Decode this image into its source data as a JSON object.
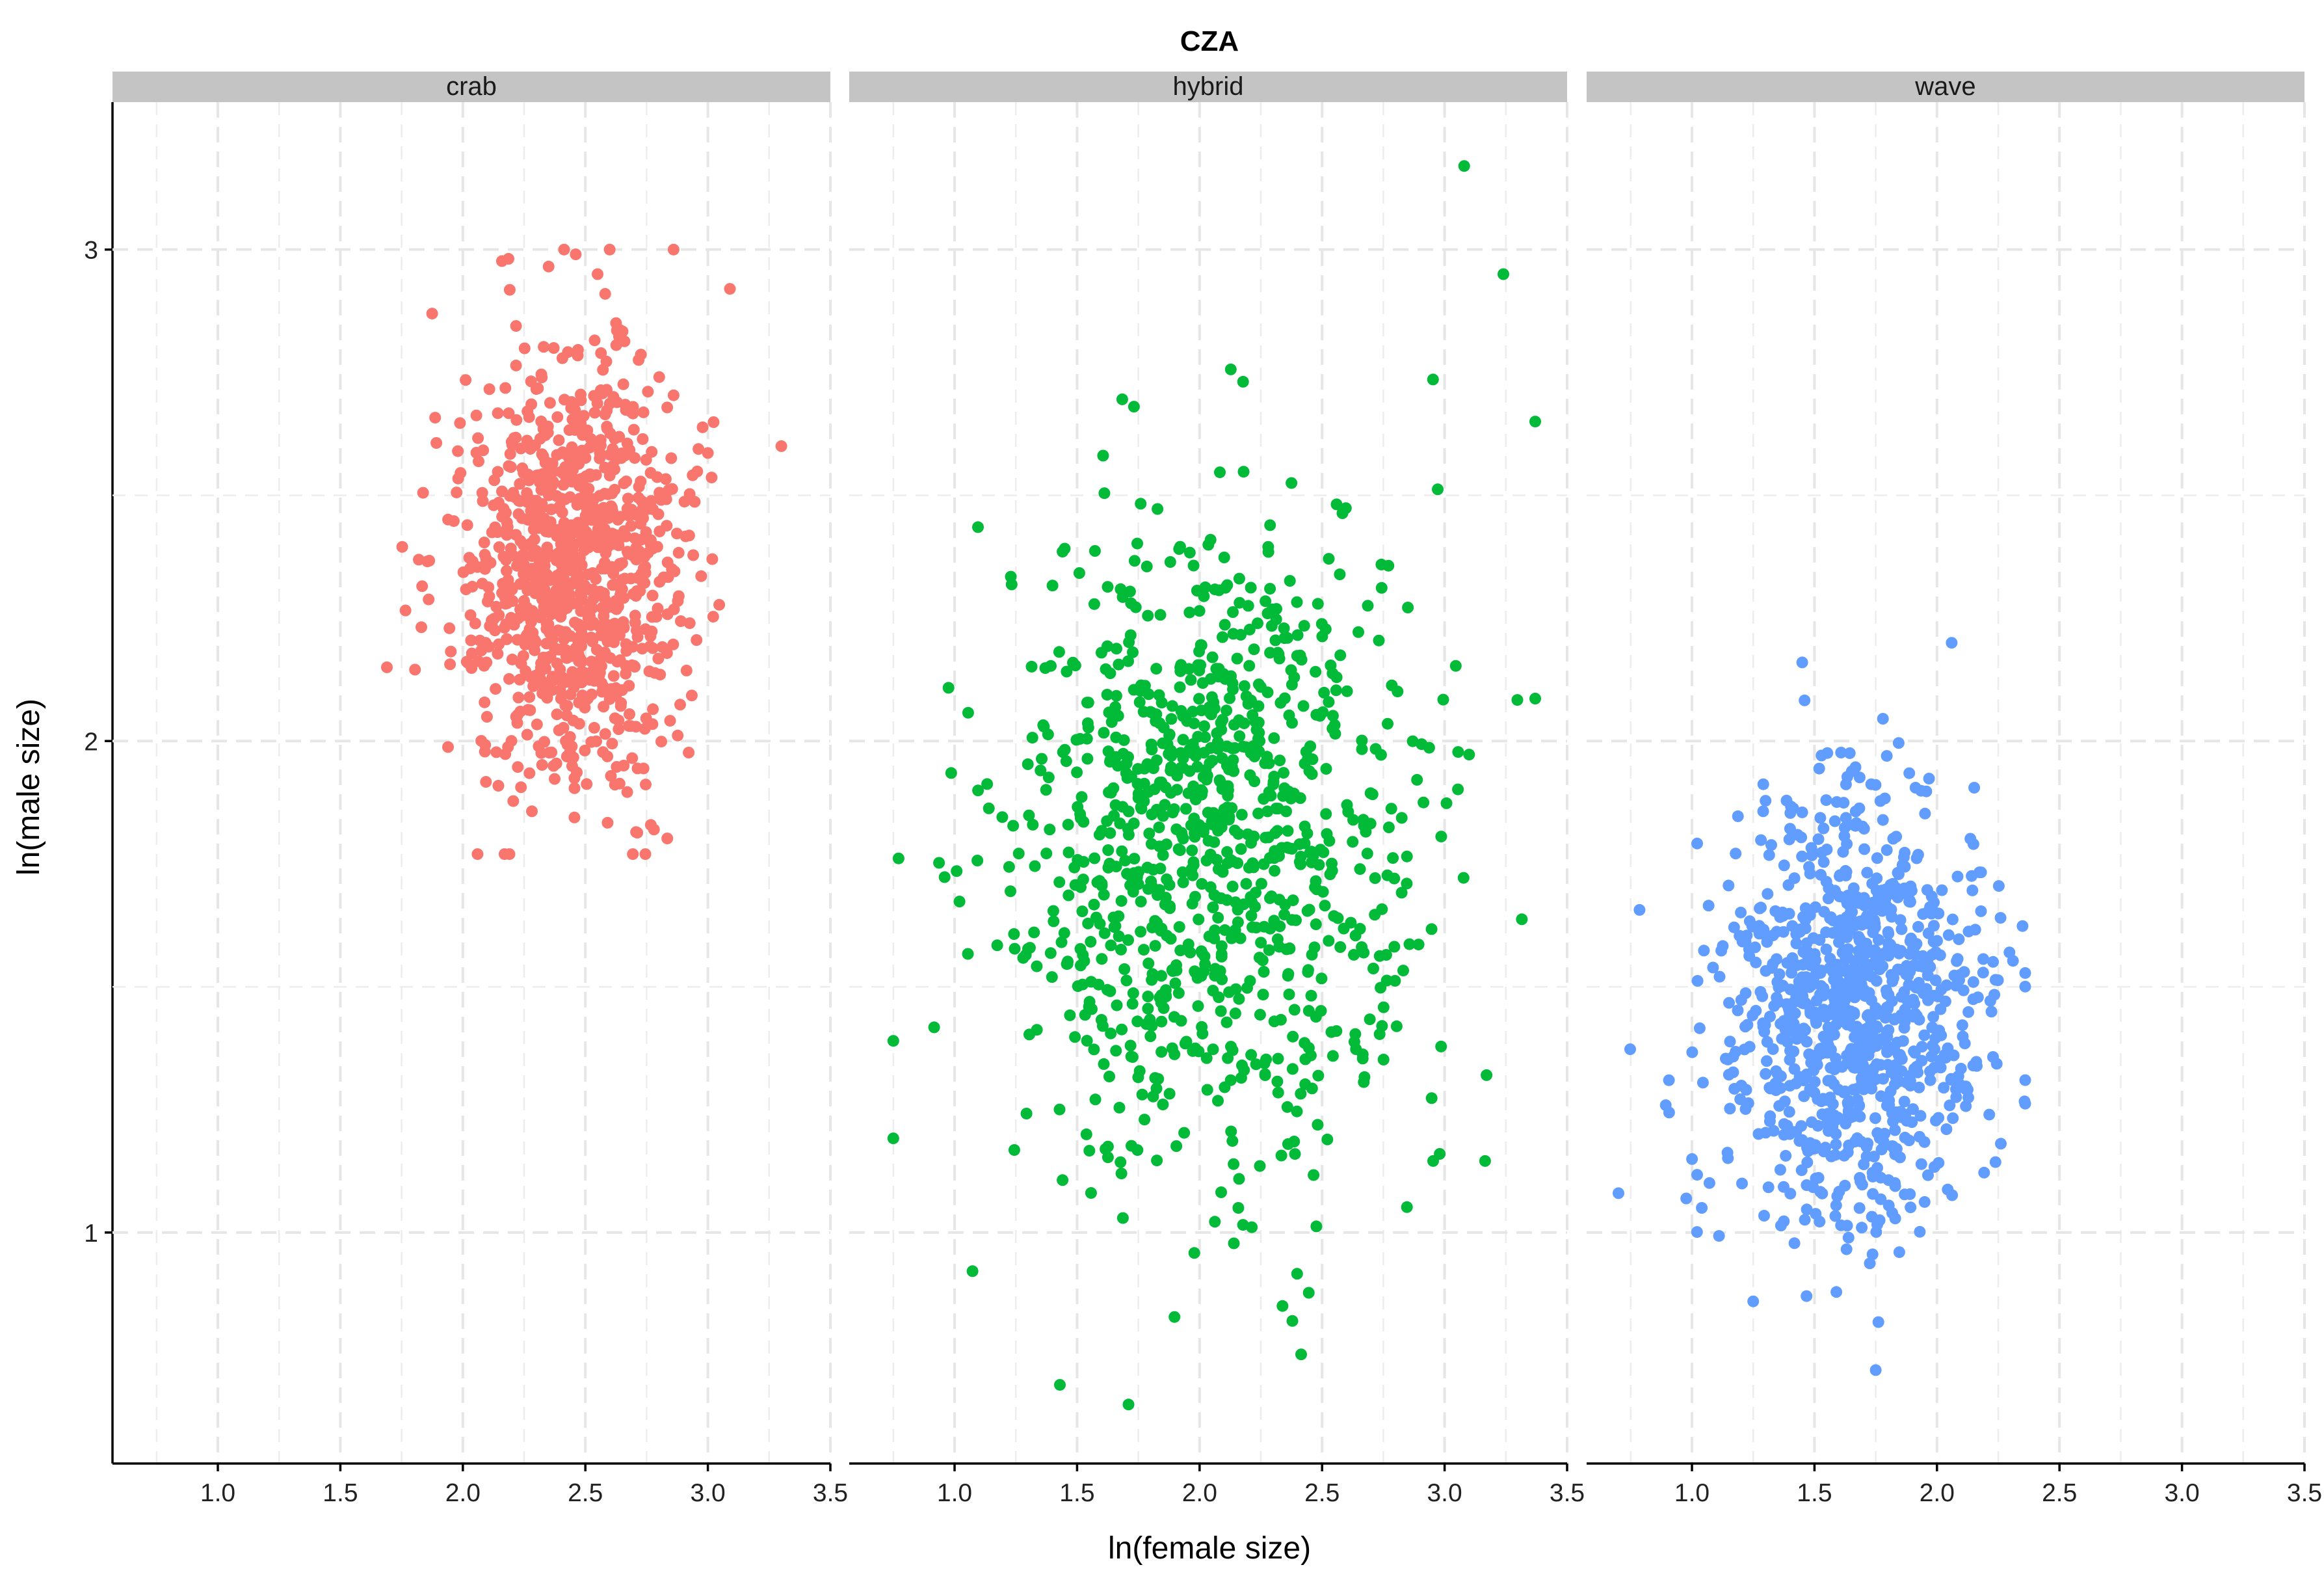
{
  "chart_data": {
    "type": "scatter",
    "title": "CZA",
    "xlabel": "ln(female size)",
    "ylabel": "ln(male size)",
    "xlim": [
      0.57,
      3.5
    ],
    "ylim": [
      0.53,
      3.3
    ],
    "x_ticks": [
      1.0,
      1.5,
      2.0,
      2.5,
      3.0,
      3.5
    ],
    "x_tick_labels": [
      "1.0",
      "1.5",
      "2.0",
      "2.5",
      "3.0",
      "3.5"
    ],
    "y_ticks": [
      1,
      2,
      3
    ],
    "y_tick_labels": [
      "1",
      "2",
      "3"
    ],
    "grid": true,
    "legend": "none",
    "panels": [
      {
        "name": "crab",
        "color": "#F8766D",
        "points_shown": 1000,
        "x_mean": 2.45,
        "x_sd": 0.22,
        "x_range": [
          1.69,
          3.3
        ],
        "y_mean": 2.35,
        "y_sd": 0.22,
        "y_range": [
          1.77,
          3.0
        ],
        "notable_points": [
          [
            2.86,
            3.0
          ],
          [
            2.55,
            2.95
          ],
          [
            3.09,
            2.92
          ],
          [
            3.3,
            2.6
          ],
          [
            1.69,
            2.15
          ],
          [
            2.06,
            1.77
          ],
          [
            2.78,
            1.82
          ]
        ]
      },
      {
        "name": "hybrid",
        "color": "#00BA38",
        "points_shown": 1000,
        "x_mean": 2.05,
        "x_sd": 0.42,
        "x_range": [
          0.75,
          3.37
        ],
        "y_mean": 1.8,
        "y_sd": 0.32,
        "y_range": [
          0.65,
          3.17
        ],
        "notable_points": [
          [
            3.08,
            3.17
          ],
          [
            3.24,
            2.95
          ],
          [
            3.37,
            2.65
          ],
          [
            0.75,
            1.39
          ],
          [
            1.71,
            0.65
          ],
          [
            1.43,
            0.69
          ],
          [
            2.98,
            1.16
          ]
        ]
      },
      {
        "name": "wave",
        "color": "#619CFF",
        "points_shown": 1000,
        "x_mean": 1.66,
        "x_sd": 0.26,
        "x_range": [
          0.7,
          2.36
        ],
        "y_mean": 1.45,
        "y_sd": 0.21,
        "y_range": [
          0.72,
          2.2
        ],
        "notable_points": [
          [
            2.06,
            2.2
          ],
          [
            1.45,
            2.16
          ],
          [
            0.7,
            1.08
          ],
          [
            1.75,
            0.72
          ],
          [
            2.36,
            1.31
          ],
          [
            1.25,
            0.86
          ]
        ]
      }
    ]
  }
}
